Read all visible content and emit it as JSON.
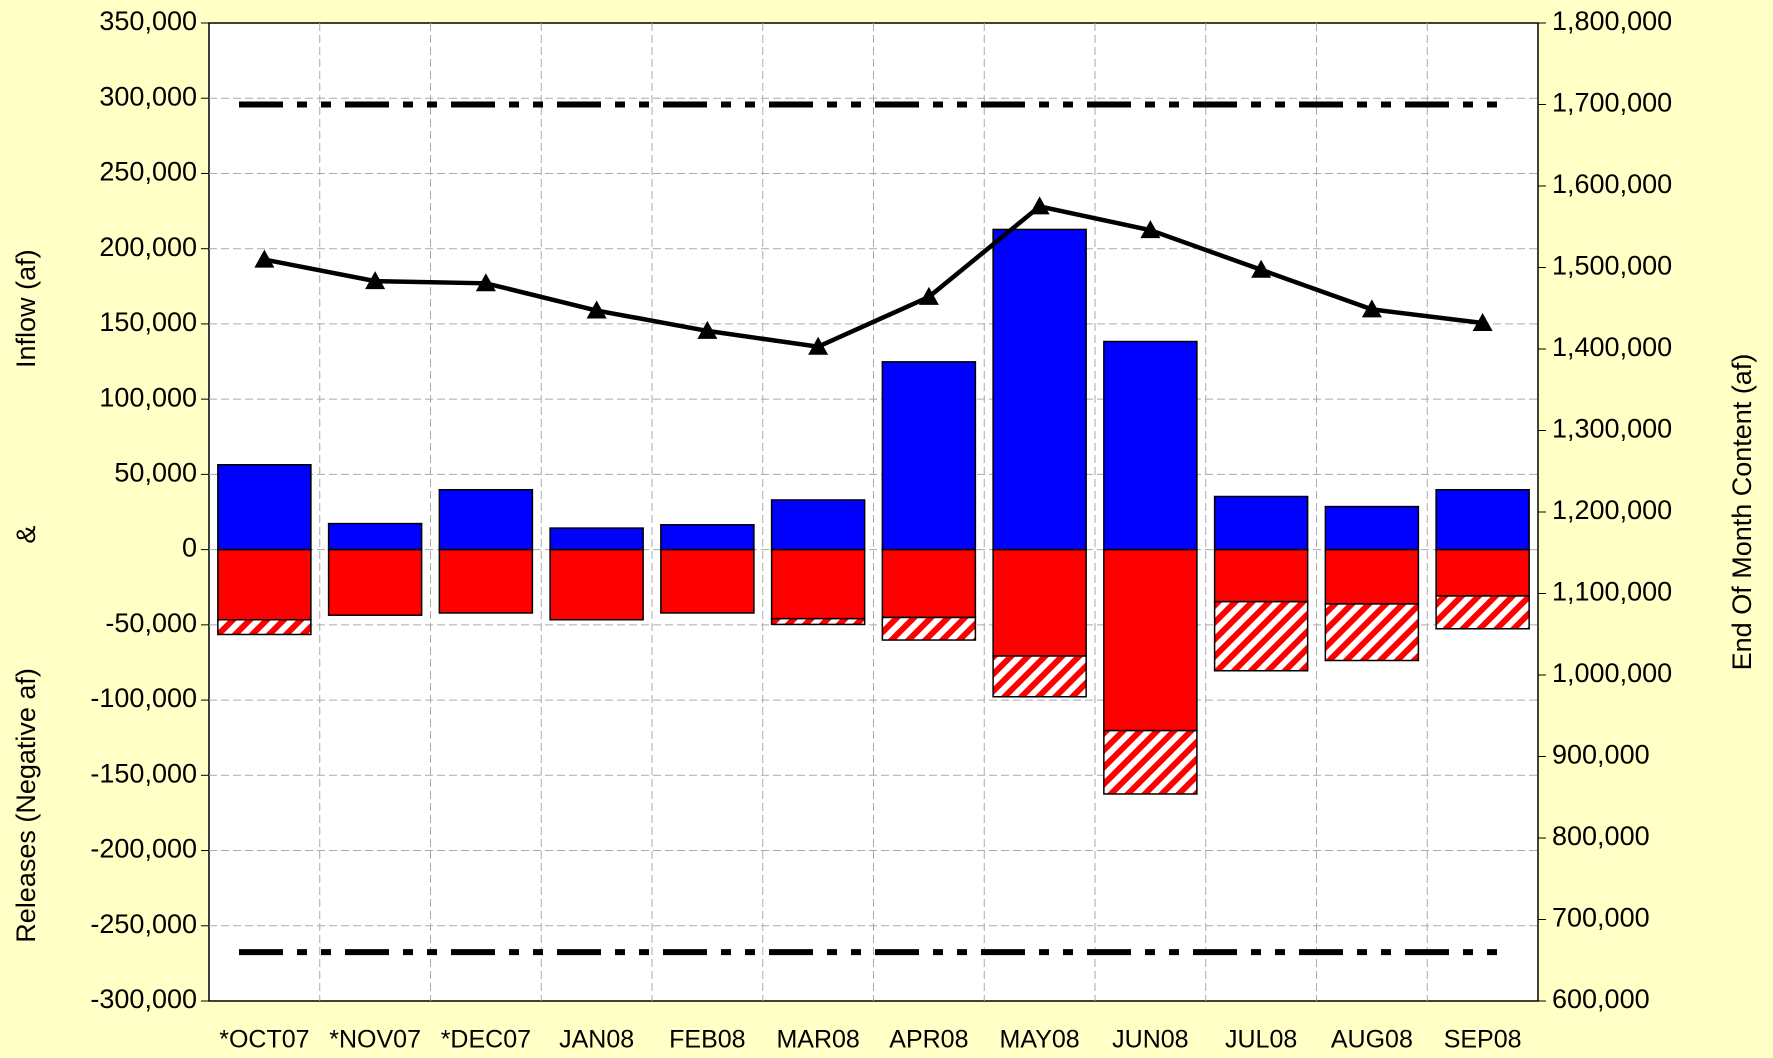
{
  "chart_data": {
    "type": "bar",
    "categories": [
      "*OCT07",
      "*NOV07",
      "*DEC07",
      "JAN08",
      "FEB08",
      "MAR08",
      "APR08",
      "MAY08",
      "JUN08",
      "JUL08",
      "AUG08",
      "SEP08"
    ],
    "series": [
      {
        "color": "#0000ff",
        "values": [
          56400,
          17300,
          39800,
          14300,
          16500,
          33000,
          124800,
          212800,
          138300,
          35300,
          28600,
          39800
        ]
      },
      {
        "color": "#ff0000",
        "values": [
          -46600,
          -43600,
          -42100,
          -46600,
          -42100,
          -45900,
          -45100,
          -70700,
          -120300,
          -34600,
          -36100,
          -30800
        ]
      },
      {
        "color": "#ff0000",
        "pattern": "hatch",
        "values": [
          -9800,
          0,
          0,
          0,
          0,
          -3800,
          -15000,
          -27100,
          -42100,
          -45900,
          -37600,
          -21800
        ]
      },
      {
        "type": "line",
        "axis": "y2",
        "color": "#000000",
        "marker": "triangle",
        "values": [
          1509700,
          1483300,
          1480600,
          1447200,
          1422200,
          1402800,
          1463900,
          1575000,
          1545800,
          1497200,
          1448600,
          1431900
        ]
      }
    ],
    "reference_lines": [
      {
        "value": 1700000,
        "axis": "y2"
      },
      {
        "value": 660000,
        "axis": "y2"
      }
    ],
    "y_label_parts": [
      "Inflow (af)",
      "&",
      "Releases (Negative af)"
    ],
    "y2_label": "End Of Month Content (af)",
    "ylim": [
      -300000,
      350000
    ],
    "yticks": [
      {
        "value": -300000,
        "label": "-300,000"
      },
      {
        "value": -250000,
        "label": "-250,000"
      },
      {
        "value": -200000,
        "label": "-200,000"
      },
      {
        "value": -150000,
        "label": "-150,000"
      },
      {
        "value": -100000,
        "label": "-100,000"
      },
      {
        "value": -50000,
        "label": "-50,000"
      },
      0,
      {
        "value": 50000,
        "label": "50,000"
      },
      {
        "value": 100000,
        "label": "100,000"
      },
      {
        "value": 150000,
        "label": "150,000"
      },
      {
        "value": 200000,
        "label": "200,000"
      },
      {
        "value": 250000,
        "label": "250,000"
      },
      {
        "value": 300000,
        "label": "300,000"
      },
      {
        "value": 350000,
        "label": "350,000"
      }
    ],
    "y2lim": [
      600000,
      1800000
    ],
    "y2ticks": [
      {
        "value": 600000,
        "label": "600,000"
      },
      {
        "value": 700000,
        "label": "700,000"
      },
      {
        "value": 800000,
        "label": "800,000"
      },
      {
        "value": 900000,
        "label": "900,000"
      },
      {
        "value": 1000000,
        "label": "1,000,000"
      },
      {
        "value": 1100000,
        "label": "1,100,000"
      },
      {
        "value": 1200000,
        "label": "1,200,000"
      },
      {
        "value": 1300000,
        "label": "1,300,000"
      },
      {
        "value": 1400000,
        "label": "1,400,000"
      },
      {
        "value": 1500000,
        "label": "1,500,000"
      },
      {
        "value": 1600000,
        "label": "1,600,000"
      },
      {
        "value": 1700000,
        "label": "1,700,000"
      },
      {
        "value": 1800000,
        "label": "1,800,000"
      }
    ],
    "grid": true
  }
}
